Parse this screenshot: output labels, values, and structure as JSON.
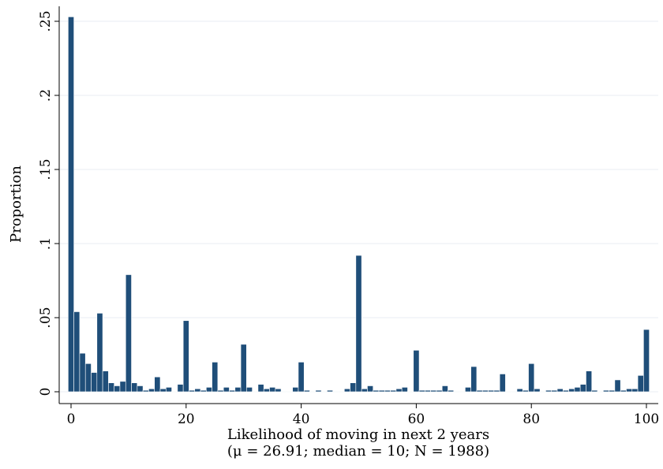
{
  "chart_data": {
    "type": "bar",
    "xlabel": "Likelihood of moving in next 2 years",
    "xlabel_sub": "(μ = 26.91; median = 10; N = 1988)",
    "ylabel": "Proportion",
    "xlim": [
      -2,
      101
    ],
    "ylim": [
      0,
      0.25
    ],
    "grid": true,
    "bar_color": "#1f4e79",
    "x_ticks": [
      {
        "value": 0,
        "label": "0"
      },
      {
        "value": 20,
        "label": "20"
      },
      {
        "value": 40,
        "label": "40"
      },
      {
        "value": 60,
        "label": "60"
      },
      {
        "value": 80,
        "label": "80"
      },
      {
        "value": 100,
        "label": "100"
      }
    ],
    "y_ticks": [
      {
        "value": 0,
        "label": "0"
      },
      {
        "value": 0.05,
        "label": ".05"
      },
      {
        "value": 0.1,
        "label": ".1"
      },
      {
        "value": 0.15,
        "label": ".15"
      },
      {
        "value": 0.2,
        "label": ".2"
      },
      {
        "value": 0.25,
        "label": ".25"
      }
    ],
    "x": [
      0,
      1,
      2,
      3,
      4,
      5,
      6,
      7,
      8,
      9,
      10,
      11,
      12,
      13,
      14,
      15,
      16,
      17,
      18,
      19,
      20,
      21,
      22,
      23,
      24,
      25,
      26,
      27,
      28,
      29,
      30,
      31,
      32,
      33,
      34,
      35,
      36,
      37,
      38,
      39,
      40,
      41,
      42,
      43,
      44,
      45,
      46,
      47,
      48,
      49,
      50,
      51,
      52,
      53,
      54,
      55,
      56,
      57,
      58,
      59,
      60,
      61,
      62,
      63,
      64,
      65,
      66,
      67,
      68,
      69,
      70,
      71,
      72,
      73,
      74,
      75,
      76,
      77,
      78,
      79,
      80,
      81,
      82,
      83,
      84,
      85,
      86,
      87,
      88,
      89,
      90,
      91,
      92,
      93,
      94,
      95,
      96,
      97,
      98,
      99,
      100
    ],
    "values": [
      0.253,
      0.054,
      0.026,
      0.019,
      0.013,
      0.053,
      0.014,
      0.006,
      0.004,
      0.007,
      0.079,
      0.006,
      0.004,
      0.001,
      0.002,
      0.01,
      0.002,
      0.003,
      0.0,
      0.005,
      0.048,
      0.001,
      0.002,
      0.001,
      0.003,
      0.02,
      0.001,
      0.003,
      0.001,
      0.003,
      0.032,
      0.003,
      0.0,
      0.005,
      0.002,
      0.003,
      0.002,
      0.0,
      0.0,
      0.003,
      0.02,
      0.001,
      0.0,
      0.001,
      0.0,
      0.001,
      0.0,
      0.0,
      0.002,
      0.006,
      0.092,
      0.002,
      0.004,
      0.001,
      0.001,
      0.001,
      0.001,
      0.002,
      0.003,
      0.0,
      0.028,
      0.001,
      0.001,
      0.001,
      0.001,
      0.004,
      0.001,
      0.0,
      0.0,
      0.003,
      0.017,
      0.001,
      0.001,
      0.001,
      0.001,
      0.012,
      0.0,
      0.0,
      0.002,
      0.001,
      0.019,
      0.002,
      0.0,
      0.001,
      0.001,
      0.002,
      0.001,
      0.002,
      0.003,
      0.005,
      0.014,
      0.001,
      0.0,
      0.001,
      0.001,
      0.008,
      0.001,
      0.002,
      0.002,
      0.011,
      0.042
    ]
  }
}
